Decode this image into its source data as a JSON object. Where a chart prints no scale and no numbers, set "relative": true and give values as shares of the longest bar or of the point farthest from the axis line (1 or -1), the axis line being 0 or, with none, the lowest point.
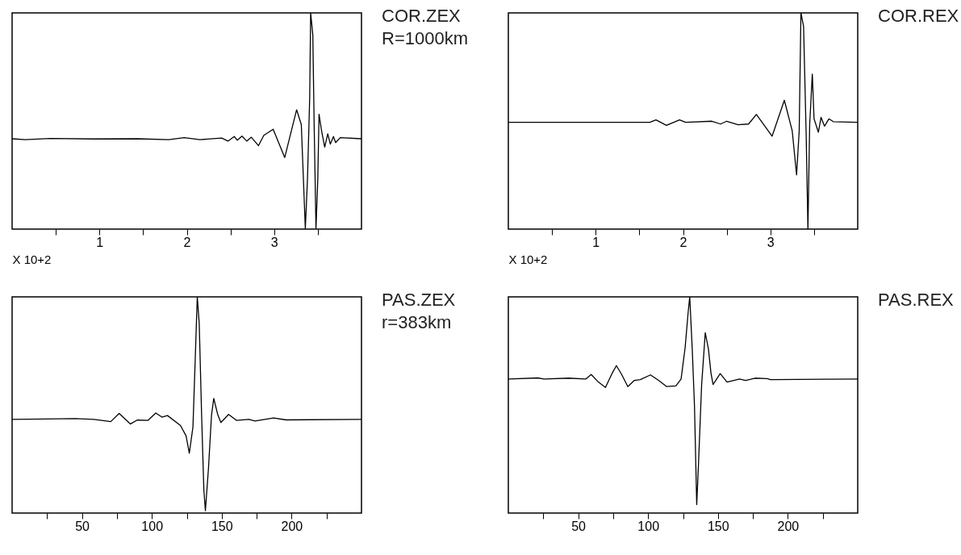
{
  "chart_data": [
    {
      "type": "line",
      "relative": true,
      "xlabel": "X 10+2",
      "annotations": [
        "COR.ZEX",
        "R=1000km"
      ],
      "xlim": [
        0,
        4
      ],
      "xticks": [
        {
          "value": 0.5,
          "label": null
        },
        1,
        {
          "value": 1.5,
          "label": null
        },
        2,
        {
          "value": 2.5,
          "label": null
        },
        3,
        {
          "value": 3.5,
          "label": null
        }
      ],
      "x": [
        0,
        0.15,
        0.436,
        0.936,
        1.436,
        1.793,
        1.971,
        2.15,
        2.4,
        2.471,
        2.543,
        2.579,
        2.632,
        2.686,
        2.739,
        2.821,
        2.882,
        2.989,
        3.121,
        3.257,
        3.311,
        3.357,
        3.382,
        3.407,
        3.418,
        3.443,
        3.457,
        3.479,
        3.5,
        3.514,
        3.543,
        3.579,
        3.614,
        3.643,
        3.679,
        3.704,
        3.757,
        4
      ],
      "series": [
        {
          "color": "#000000",
          "values": [
            0.418,
            0.414,
            0.419,
            0.417,
            0.418,
            0.414,
            0.423,
            0.414,
            0.421,
            0.407,
            0.428,
            0.411,
            0.43,
            0.407,
            0.425,
            0.386,
            0.434,
            0.462,
            0.331,
            0.552,
            0.483,
            0.003,
            0.234,
            0.607,
            1,
            0.897,
            0.51,
            0.003,
            0.234,
            0.531,
            0.455,
            0.379,
            0.441,
            0.393,
            0.428,
            0.4,
            0.423,
            0.418
          ]
        }
      ]
    },
    {
      "type": "line",
      "relative": true,
      "xlabel": "X 10+2",
      "annotations": [
        "COR.REX"
      ],
      "xlim": [
        0,
        4
      ],
      "xticks": [
        {
          "value": 0.5,
          "label": null
        },
        1,
        {
          "value": 1.5,
          "label": null
        },
        2,
        {
          "value": 2.5,
          "label": null
        },
        3,
        {
          "value": 3.5,
          "label": null
        }
      ],
      "x": [
        0,
        1.62,
        1.69,
        1.81,
        1.96,
        2.03,
        2.33,
        2.43,
        2.5,
        2.63,
        2.75,
        2.84,
        3.02,
        3.16,
        3.25,
        3.3,
        3.33,
        3.35,
        3.38,
        3.41,
        3.43,
        3.45,
        3.48,
        3.5,
        3.55,
        3.58,
        3.62,
        3.67,
        3.72,
        4
      ],
      "series": [
        {
          "color": "#000000",
          "values": [
            0.494,
            0.494,
            0.505,
            0.48,
            0.505,
            0.494,
            0.499,
            0.486,
            0.499,
            0.483,
            0.486,
            0.53,
            0.43,
            0.596,
            0.455,
            0.251,
            0.455,
            1,
            0.938,
            0.434,
            0,
            0.483,
            0.717,
            0.51,
            0.448,
            0.517,
            0.476,
            0.51,
            0.497,
            0.494
          ]
        }
      ]
    },
    {
      "type": "line",
      "relative": true,
      "annotations": [
        "PAS.ZEX",
        "r=383km"
      ],
      "xlim": [
        0,
        250
      ],
      "xticks": [
        {
          "value": 25,
          "label": null
        },
        50,
        {
          "value": 75,
          "label": null
        },
        100,
        {
          "value": 125,
          "label": null
        },
        150,
        {
          "value": 175,
          "label": null
        },
        200,
        {
          "value": 225,
          "label": null
        }
      ],
      "x": [
        0,
        25.2,
        45.2,
        58.4,
        70.6,
        76.6,
        84.6,
        89.5,
        97.3,
        102.8,
        107.2,
        111.2,
        120.5,
        124.5,
        126.8,
        129.4,
        131.2,
        132.5,
        133.9,
        135.6,
        137.2,
        138.3,
        140.5,
        142.7,
        144.3,
        147.2,
        149.4,
        154.9,
        160.5,
        169.4,
        173.8,
        187.1,
        196,
        250
      ],
      "series": [
        {
          "color": "#000000",
          "values": [
            0.433,
            0.435,
            0.437,
            0.433,
            0.423,
            0.461,
            0.412,
            0.43,
            0.429,
            0.463,
            0.444,
            0.451,
            0.405,
            0.357,
            0.277,
            0.398,
            0.744,
            1,
            0.876,
            0.454,
            0.108,
            0.011,
            0.205,
            0.454,
            0.53,
            0.454,
            0.419,
            0.456,
            0.429,
            0.433,
            0.426,
            0.44,
            0.431,
            0.433
          ]
        }
      ]
    },
    {
      "type": "line",
      "relative": true,
      "annotations": [
        "PAS.REX"
      ],
      "xlim": [
        0,
        250
      ],
      "xticks": [
        {
          "value": 25,
          "label": null
        },
        50,
        {
          "value": 75,
          "label": null
        },
        100,
        {
          "value": 125,
          "label": null
        },
        150,
        {
          "value": 175,
          "label": null
        },
        200,
        {
          "value": 225,
          "label": null
        }
      ],
      "x": [
        0,
        21.1,
        25.6,
        43.3,
        55.5,
        59.3,
        64.4,
        69.5,
        74.4,
        77.3,
        81.1,
        85.5,
        90,
        94.4,
        101.7,
        107.7,
        113.3,
        119.9,
        123.6,
        126.5,
        128.7,
        129.8,
        131.6,
        133.2,
        134.8,
        136.1,
        138.3,
        140.9,
        143.2,
        145,
        146.5,
        151.6,
        156.5,
        165.4,
        169.8,
        176.5,
        185.3,
        187.6,
        250
      ],
      "series": [
        {
          "color": "#000000",
          "values": [
            0.62,
            0.625,
            0.62,
            0.624,
            0.62,
            0.641,
            0.606,
            0.581,
            0.648,
            0.682,
            0.641,
            0.585,
            0.613,
            0.617,
            0.639,
            0.613,
            0.585,
            0.588,
            0.62,
            0.765,
            0.931,
            1,
            0.758,
            0.495,
            0.039,
            0.232,
            0.592,
            0.834,
            0.758,
            0.647,
            0.595,
            0.645,
            0.606,
            0.62,
            0.613,
            0.624,
            0.622,
            0.617,
            0.62
          ]
        }
      ]
    }
  ]
}
